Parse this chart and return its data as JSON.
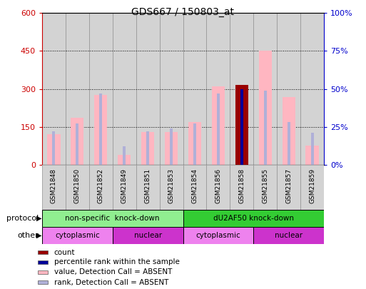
{
  "title": "GDS667 / 150803_at",
  "samples": [
    "GSM21848",
    "GSM21850",
    "GSM21852",
    "GSM21849",
    "GSM21851",
    "GSM21853",
    "GSM21854",
    "GSM21856",
    "GSM21858",
    "GSM21855",
    "GSM21857",
    "GSM21859"
  ],
  "value_bars": [
    120,
    185,
    275,
    40,
    128,
    128,
    170,
    310,
    315,
    452,
    268,
    75
  ],
  "rank_pct": [
    22,
    27,
    47,
    12,
    22,
    24,
    27,
    47,
    50,
    49,
    28,
    21
  ],
  "count_bar_index": 8,
  "count_bar_value": 315,
  "rank_special_index": 8,
  "ylim_left": [
    0,
    600
  ],
  "ylim_right": [
    0,
    100
  ],
  "yticks_left": [
    0,
    150,
    300,
    450,
    600
  ],
  "yticks_right": [
    0,
    25,
    50,
    75,
    100
  ],
  "ytick_labels_left": [
    "0",
    "150",
    "300",
    "450",
    "600"
  ],
  "ytick_labels_right": [
    "0%",
    "25%",
    "50%",
    "75%",
    "100%"
  ],
  "color_value_bar": "#ffb6c1",
  "color_rank_bar": "#b0b0d8",
  "color_count_bar": "#990000",
  "color_rank_special": "#000099",
  "protocol_groups": [
    {
      "label": "non-specific  knock-down",
      "start": 0,
      "end": 6,
      "color": "#90ee90"
    },
    {
      "label": "dU2AF50 knock-down",
      "start": 6,
      "end": 12,
      "color": "#33cc33"
    }
  ],
  "other_groups": [
    {
      "label": "cytoplasmic",
      "start": 0,
      "end": 3,
      "color": "#ee82ee"
    },
    {
      "label": "nuclear",
      "start": 3,
      "end": 6,
      "color": "#cc33cc"
    },
    {
      "label": "cytoplasmic",
      "start": 6,
      "end": 9,
      "color": "#ee82ee"
    },
    {
      "label": "nuclear",
      "start": 9,
      "end": 12,
      "color": "#cc33cc"
    }
  ],
  "legend_items": [
    {
      "label": "count",
      "color": "#990000"
    },
    {
      "label": "percentile rank within the sample",
      "color": "#000099"
    },
    {
      "label": "value, Detection Call = ABSENT",
      "color": "#ffb6c1"
    },
    {
      "label": "rank, Detection Call = ABSENT",
      "color": "#b0b0d8"
    }
  ],
  "bg_color": "#ffffff",
  "col_bg": "#d3d3d3",
  "label_color_left": "#cc0000",
  "label_color_right": "#0000cc"
}
